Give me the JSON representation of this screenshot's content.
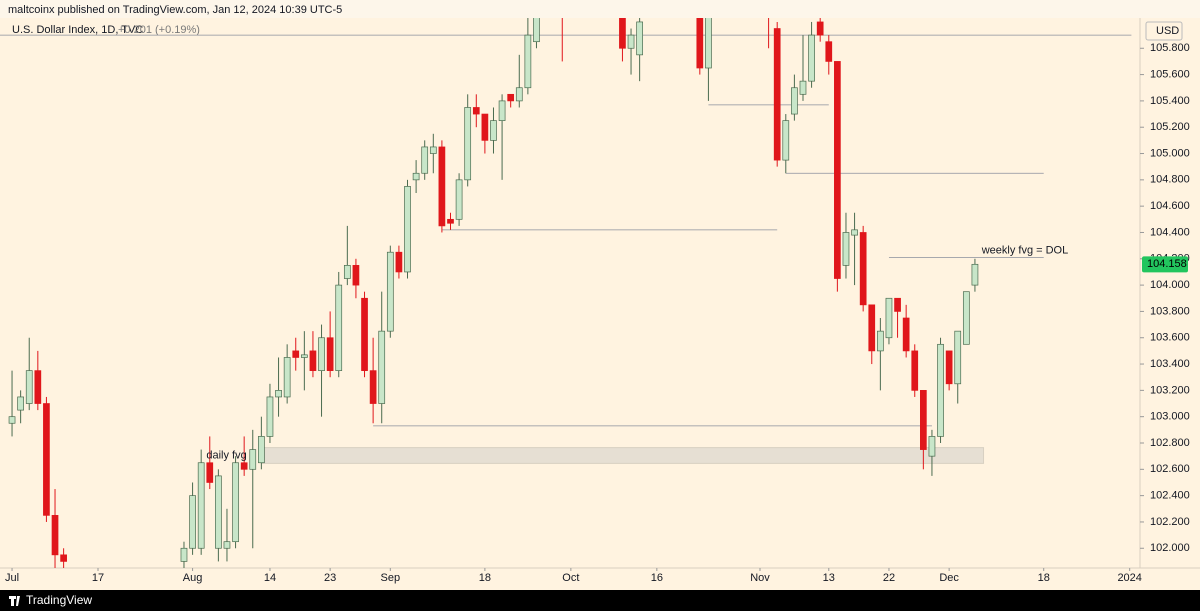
{
  "header": {
    "publisher": "maltcoinx published on TradingView.com, Jan 12, 2024 10:39 UTC-5",
    "brand": "TradingView"
  },
  "chart_data": {
    "type": "candlestick",
    "title": "U.S. Dollar Index, 1D, TVC",
    "change": "+0.201 (+0.19%)",
    "currency": "USD",
    "last_price": 104.158,
    "up_color": "#c8e6c9",
    "down_color": "#e0161b",
    "x": [
      0,
      1,
      2,
      3,
      4,
      5,
      6,
      20,
      21,
      22,
      23,
      24,
      25,
      26,
      27,
      28,
      29,
      30,
      31,
      32,
      33,
      34,
      35,
      36,
      37,
      38,
      39,
      40,
      41,
      42,
      43,
      44,
      45,
      46,
      47,
      48,
      49,
      50,
      51,
      52,
      53,
      54,
      55,
      56,
      57,
      58,
      59,
      60,
      61,
      64,
      71,
      72,
      73,
      80,
      81,
      88,
      89,
      90,
      91,
      92,
      93,
      94,
      95,
      96,
      97,
      98,
      99,
      100,
      101,
      102,
      103,
      104,
      105,
      106,
      107,
      108,
      109,
      110,
      111,
      112
    ],
    "open": [
      102.95,
      103.05,
      103.1,
      103.35,
      103.1,
      102.25,
      101.95,
      101.9,
      102.0,
      102.0,
      102.65,
      102.0,
      102.0,
      102.05,
      102.65,
      102.6,
      102.65,
      102.85,
      103.15,
      103.15,
      103.5,
      103.45,
      103.5,
      103.35,
      103.6,
      103.35,
      104.05,
      104.15,
      103.9,
      103.35,
      103.1,
      103.65,
      104.25,
      104.1,
      104.8,
      104.85,
      105.0,
      105.05,
      104.5,
      104.5,
      104.8,
      105.35,
      105.3,
      105.1,
      105.25,
      105.45,
      105.4,
      105.5,
      105.85,
      106.3,
      106.1,
      105.8,
      105.75,
      106.1,
      105.65,
      106.2,
      105.95,
      104.95,
      105.3,
      105.45,
      105.55,
      106.0,
      105.85,
      105.7,
      104.15,
      104.38,
      104.4,
      103.85,
      103.5,
      103.6,
      103.9,
      103.75,
      103.5,
      103.2,
      102.7,
      102.85,
      103.5,
      103.25,
      103.55,
      104.0
    ],
    "high": [
      103.35,
      103.2,
      103.6,
      103.5,
      103.15,
      102.45,
      102.0,
      102.05,
      102.5,
      102.75,
      102.85,
      102.6,
      102.3,
      102.7,
      102.85,
      102.9,
      103.0,
      103.25,
      103.45,
      103.55,
      103.6,
      103.65,
      103.65,
      103.7,
      103.8,
      104.1,
      104.45,
      104.2,
      103.95,
      103.6,
      103.95,
      104.3,
      104.3,
      104.8,
      104.95,
      105.1,
      105.15,
      105.1,
      104.55,
      104.85,
      105.45,
      105.45,
      105.3,
      105.35,
      105.45,
      105.45,
      105.75,
      106.1,
      106.2,
      106.5,
      106.2,
      105.95,
      106.1,
      106.2,
      106.15,
      106.3,
      106.0,
      105.3,
      105.6,
      105.9,
      106.0,
      106.05,
      105.9,
      105.7,
      104.55,
      104.55,
      104.45,
      103.85,
      103.75,
      103.9,
      103.9,
      103.85,
      103.55,
      103.2,
      102.9,
      103.6,
      103.5,
      103.65,
      103.95,
      104.2
    ],
    "low": [
      102.85,
      102.95,
      103.05,
      103.05,
      102.2,
      101.7,
      101.7,
      101.8,
      101.95,
      101.95,
      102.45,
      101.9,
      101.9,
      102.0,
      102.55,
      102.0,
      102.6,
      102.8,
      103.0,
      103.1,
      103.35,
      103.2,
      103.3,
      103.0,
      103.3,
      103.3,
      104.0,
      103.9,
      103.3,
      102.95,
      102.95,
      103.6,
      104.05,
      104.05,
      104.7,
      104.8,
      104.85,
      104.4,
      104.42,
      104.45,
      104.75,
      105.2,
      105.0,
      105.0,
      104.8,
      105.35,
      105.35,
      105.45,
      105.8,
      105.7,
      105.7,
      105.6,
      105.55,
      105.6,
      105.4,
      105.8,
      104.9,
      104.85,
      105.25,
      105.4,
      105.5,
      105.85,
      105.6,
      103.95,
      104.05,
      104.0,
      103.8,
      103.4,
      103.2,
      103.55,
      103.6,
      103.45,
      103.15,
      102.6,
      102.55,
      102.8,
      103.2,
      103.1,
      103.55,
      103.95
    ],
    "close": [
      103.0,
      103.15,
      103.35,
      103.1,
      102.25,
      101.95,
      101.9,
      102.0,
      102.4,
      102.65,
      102.5,
      102.55,
      102.05,
      102.65,
      102.6,
      102.75,
      102.85,
      103.15,
      103.2,
      103.45,
      103.45,
      103.47,
      103.35,
      103.6,
      103.35,
      104.0,
      104.15,
      104.0,
      103.35,
      103.1,
      103.65,
      104.25,
      104.1,
      104.75,
      104.85,
      105.05,
      105.05,
      104.45,
      104.47,
      104.8,
      105.35,
      105.3,
      105.1,
      105.25,
      105.4,
      105.4,
      105.5,
      105.9,
      106.1,
      106.2,
      105.8,
      105.9,
      106.0,
      105.65,
      106.1,
      106.1,
      104.95,
      105.25,
      105.5,
      105.55,
      105.9,
      105.9,
      105.7,
      104.05,
      104.4,
      104.42,
      103.85,
      103.5,
      103.65,
      103.9,
      103.8,
      103.5,
      103.2,
      102.75,
      102.85,
      103.55,
      103.25,
      103.65,
      103.95,
      104.158
    ],
    "xlim": [
      -1.4,
      131.2
    ],
    "xticks": [
      {
        "value": 0,
        "label": "Jul"
      },
      {
        "value": 10,
        "label": "17"
      },
      {
        "value": 21,
        "label": "Aug"
      },
      {
        "value": 30,
        "label": "14"
      },
      {
        "value": 37,
        "label": "23"
      },
      {
        "value": 44,
        "label": "Sep"
      },
      {
        "value": 55,
        "label": "18"
      },
      {
        "value": 65,
        "label": "Oct"
      },
      {
        "value": 75,
        "label": "16"
      },
      {
        "value": 87,
        "label": "Nov"
      },
      {
        "value": 95,
        "label": "13"
      },
      {
        "value": 102,
        "label": "22"
      },
      {
        "value": 109,
        "label": "Dec"
      },
      {
        "value": 120,
        "label": "18"
      },
      {
        "value": 130,
        "label": "2024"
      }
    ],
    "ylim": [
      101.85,
      106.03
    ],
    "yticks": [
      {
        "value": 102.0,
        "label": "102.000"
      },
      {
        "value": 102.2,
        "label": "102.200"
      },
      {
        "value": 102.4,
        "label": "102.400"
      },
      {
        "value": 102.6,
        "label": "102.600"
      },
      {
        "value": 102.8,
        "label": "102.800"
      },
      {
        "value": 103.0,
        "label": "103.000"
      },
      {
        "value": 103.2,
        "label": "103.200"
      },
      {
        "value": 103.4,
        "label": "103.400"
      },
      {
        "value": 103.6,
        "label": "103.600"
      },
      {
        "value": 103.8,
        "label": "103.800"
      },
      {
        "value": 104.0,
        "label": "104.000"
      },
      {
        "value": 104.2,
        "label": "104.200"
      },
      {
        "value": 104.4,
        "label": "104.400"
      },
      {
        "value": 104.6,
        "label": "104.600"
      },
      {
        "value": 104.8,
        "label": "104.800"
      },
      {
        "value": 105.0,
        "label": "105.000"
      },
      {
        "value": 105.2,
        "label": "105.200"
      },
      {
        "value": 105.4,
        "label": "105.400"
      },
      {
        "value": 105.6,
        "label": "105.600"
      },
      {
        "value": 105.8,
        "label": "105.800"
      }
    ],
    "levels": [
      {
        "price": 105.9,
        "x": [
          -1.4,
          130.2
        ]
      },
      {
        "price": 105.37,
        "x": [
          81,
          95
        ]
      },
      {
        "price": 104.85,
        "x": [
          90,
          120
        ]
      },
      {
        "price": 104.42,
        "x": [
          50,
          89
        ]
      },
      {
        "price": 104.21,
        "x": [
          102,
          120
        ],
        "label": "weekly fvg = DOL"
      },
      {
        "price": 102.93,
        "x": [
          42,
          107
        ]
      }
    ],
    "zones": [
      {
        "label": "daily fvg",
        "range": [
          102.645,
          102.765
        ],
        "x": [
          29,
          113
        ]
      }
    ]
  }
}
